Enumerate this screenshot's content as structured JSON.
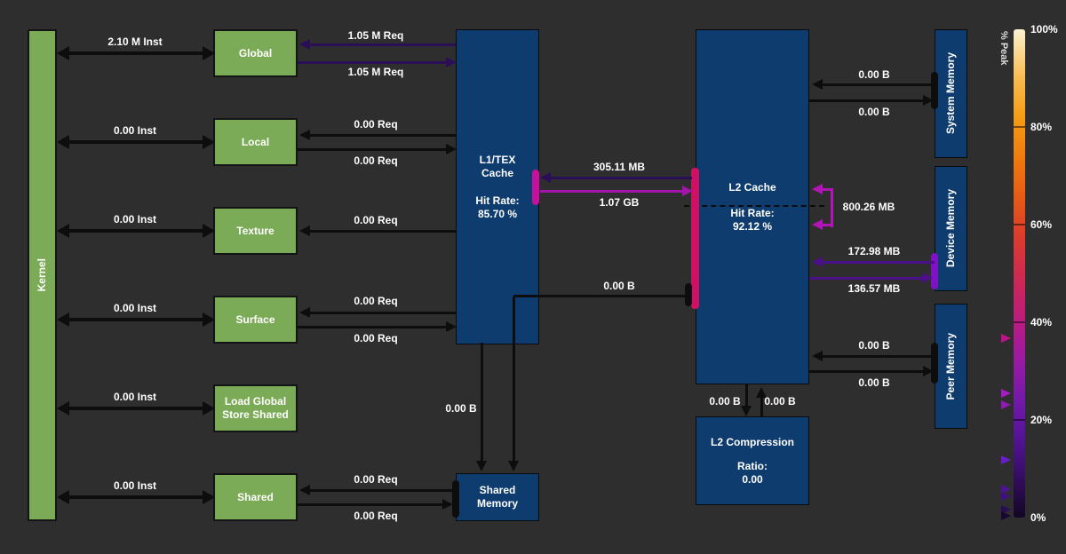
{
  "app": {
    "name": "Memory Workload Analysis Chart"
  },
  "colors": {
    "background": "#2e2e2e",
    "green_box": "#7cab57",
    "blue_box": "#0e3c6e",
    "flow_black": "#0d0d0d",
    "flow_dark_purple": "#2b0f56",
    "flow_magenta": "#a315a8",
    "flow_loop_magenta": "#b214b6",
    "flow_violet": "#4b0f8a",
    "port_l1": "#c8109e",
    "port_l2": "#d01063",
    "port_device": "#7e12c4",
    "port_idle": "#0d0d0d"
  },
  "nodes": {
    "kernel": {
      "label": "Kernel"
    },
    "global": {
      "label": "Global"
    },
    "local": {
      "label": "Local"
    },
    "texture": {
      "label": "Texture"
    },
    "surface": {
      "label": "Surface"
    },
    "lgss": {
      "label": "Load Global\nStore Shared"
    },
    "shared": {
      "label": "Shared"
    },
    "l1": {
      "title": "L1/TEX\nCache",
      "hit": "Hit Rate:\n85.70 %"
    },
    "shared_memory": {
      "label": "Shared\nMemory"
    },
    "l2": {
      "title": "L2 Cache",
      "hit": "Hit Rate:\n92.12 %"
    },
    "l2_compression": {
      "title": "L2 Compression",
      "ratio": "Ratio:\n0.00"
    },
    "system_memory": {
      "label": "System Memory"
    },
    "device_memory": {
      "label": "Device Memory"
    },
    "peer_memory": {
      "label": "Peer Memory"
    }
  },
  "edges": {
    "kernel_global": "2.10 M Inst",
    "kernel_local": "0.00 Inst",
    "kernel_texture": "0.00 Inst",
    "kernel_surface": "0.00 Inst",
    "kernel_lgss": "0.00 Inst",
    "kernel_shared": "0.00 Inst",
    "l1_to_global": "1.05 M Req",
    "global_to_l1": "1.05 M Req",
    "l1_to_local": "0.00 Req",
    "local_to_l1": "0.00 Req",
    "l1_to_texture": "0.00 Req",
    "l1_to_surface": "0.00 Req",
    "surface_to_l1": "0.00 Req",
    "sharedmem_to_shared": "0.00 Req",
    "shared_to_sharedmem": "0.00 Req",
    "l2_to_l1": "305.11 MB",
    "l1_to_l2": "1.07 GB",
    "l2_to_sharedmem": "0.00 B",
    "l1_to_sharedmem": "0.00 B",
    "system_to_l2": "0.00 B",
    "l2_to_system": "0.00 B",
    "l2_internal_loop": "800.26 MB",
    "device_to_l2": "172.98 MB",
    "l2_to_device": "136.57 MB",
    "peer_to_l2": "0.00 B",
    "l2_to_peer": "0.00 B",
    "l2_to_compression": "0.00 B",
    "compression_to_l2": "0.00 B"
  },
  "scale": {
    "title": "% Peak",
    "ticks": [
      "100%",
      "80%",
      "60%",
      "40%",
      "20%",
      "0%"
    ],
    "markers": [
      {
        "pct": 36.7,
        "color": "#c2118c"
      },
      {
        "pct": 25.5,
        "color": "#a51cc6"
      },
      {
        "pct": 23.1,
        "color": "#9319b4"
      },
      {
        "pct": 11.8,
        "color": "#6c1cd0"
      },
      {
        "pct": 5.8,
        "color": "#4f129a"
      },
      {
        "pct": 4.4,
        "color": "#410f82"
      },
      {
        "pct": 1.6,
        "color": "#2a0c54"
      },
      {
        "pct": 0.4,
        "color": "#170731"
      }
    ]
  }
}
